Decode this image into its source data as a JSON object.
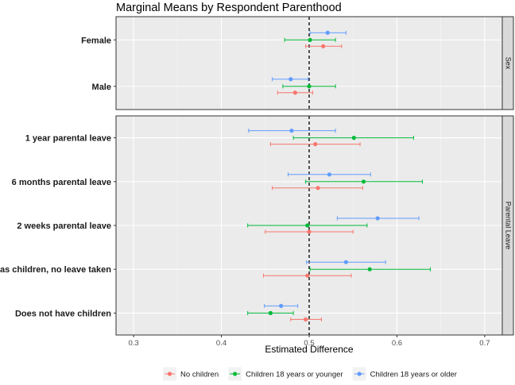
{
  "chart_data": {
    "type": "scatter",
    "subtype": "point-range (marginal means with confidence intervals), faceted",
    "title": "Marginal Means by Respondent Parenthood",
    "xlabel": "Estimated Difference",
    "xlim": [
      0.28,
      0.72
    ],
    "xticks": [
      0.3,
      0.4,
      0.5,
      0.6,
      0.7
    ],
    "xtick_labels": [
      "0.3",
      "0.4",
      "0.5",
      "0.6",
      "0.7"
    ],
    "reference_line": 0.5,
    "series": [
      {
        "name": "No children",
        "color": "#F8766D"
      },
      {
        "name": "Children 18 years or younger",
        "color": "#00BA38"
      },
      {
        "name": "Children 18 years or older",
        "color": "#619CFF"
      }
    ],
    "legend_position": "bottom",
    "facets": [
      {
        "strip": "Sex",
        "levels": [
          {
            "label": "Female",
            "points": [
              {
                "series": "No children",
                "estimate": 0.516,
                "lower": 0.496,
                "upper": 0.537
              },
              {
                "series": "Children 18 years or younger",
                "estimate": 0.501,
                "lower": 0.472,
                "upper": 0.53
              },
              {
                "series": "Children 18 years or older",
                "estimate": 0.521,
                "lower": 0.501,
                "upper": 0.542
              }
            ]
          },
          {
            "label": "Male",
            "points": [
              {
                "series": "No children",
                "estimate": 0.484,
                "lower": 0.464,
                "upper": 0.504
              },
              {
                "series": "Children 18 years or younger",
                "estimate": 0.5,
                "lower": 0.47,
                "upper": 0.53
              },
              {
                "series": "Children 18 years or older",
                "estimate": 0.479,
                "lower": 0.458,
                "upper": 0.499
              }
            ]
          }
        ]
      },
      {
        "strip": "Parental Leave",
        "levels": [
          {
            "label": "1 year parental leave",
            "points": [
              {
                "series": "No children",
                "estimate": 0.507,
                "lower": 0.456,
                "upper": 0.558
              },
              {
                "series": "Children 18 years or younger",
                "estimate": 0.551,
                "lower": 0.482,
                "upper": 0.619
              },
              {
                "series": "Children 18 years or older",
                "estimate": 0.48,
                "lower": 0.431,
                "upper": 0.53
              }
            ]
          },
          {
            "label": "6 months parental leave",
            "points": [
              {
                "series": "No children",
                "estimate": 0.51,
                "lower": 0.458,
                "upper": 0.561
              },
              {
                "series": "Children 18 years or younger",
                "estimate": 0.562,
                "lower": 0.496,
                "upper": 0.629
              },
              {
                "series": "Children 18 years or older",
                "estimate": 0.523,
                "lower": 0.476,
                "upper": 0.57
              }
            ]
          },
          {
            "label": "2 weeks parental leave",
            "points": [
              {
                "series": "No children",
                "estimate": 0.5,
                "lower": 0.45,
                "upper": 0.55
              },
              {
                "series": "Children 18 years or younger",
                "estimate": 0.498,
                "lower": 0.43,
                "upper": 0.566
              },
              {
                "series": "Children 18 years or older",
                "estimate": 0.578,
                "lower": 0.532,
                "upper": 0.625
              }
            ]
          },
          {
            "label": "Has children, no leave taken",
            "points": [
              {
                "series": "No children",
                "estimate": 0.498,
                "lower": 0.448,
                "upper": 0.548
              },
              {
                "series": "Children 18 years or younger",
                "estimate": 0.569,
                "lower": 0.501,
                "upper": 0.638
              },
              {
                "series": "Children 18 years or older",
                "estimate": 0.542,
                "lower": 0.497,
                "upper": 0.587
              }
            ]
          },
          {
            "label": "Does not have children",
            "points": [
              {
                "series": "No children",
                "estimate": 0.496,
                "lower": 0.479,
                "upper": 0.514
              },
              {
                "series": "Children 18 years or younger",
                "estimate": 0.456,
                "lower": 0.43,
                "upper": 0.482
              },
              {
                "series": "Children 18 years or older",
                "estimate": 0.468,
                "lower": 0.449,
                "upper": 0.487
              }
            ]
          }
        ]
      }
    ]
  }
}
